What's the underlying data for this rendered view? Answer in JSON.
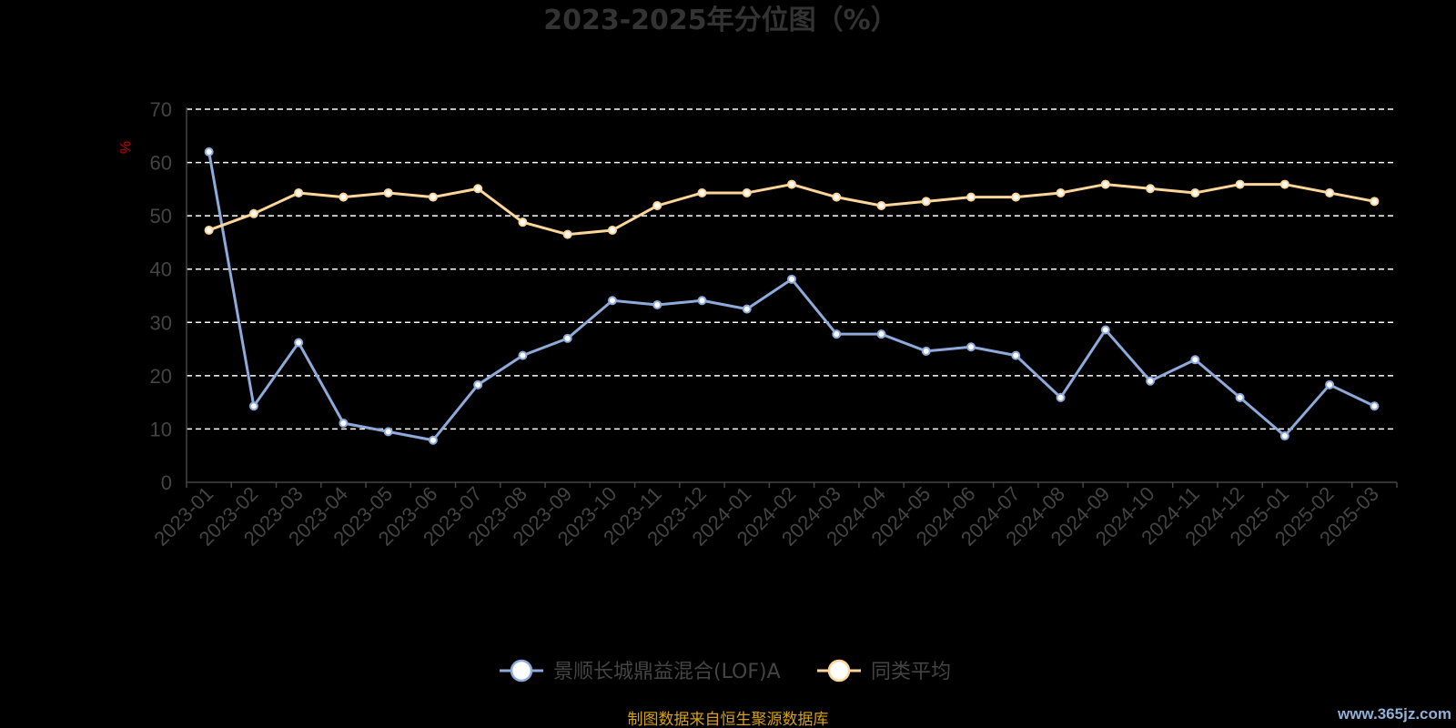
{
  "chart_data": {
    "type": "line",
    "title": "2023-2025年分位图（%）",
    "ylabel": "%",
    "ylim": [
      0,
      70
    ],
    "yticks": [
      0,
      10,
      20,
      30,
      40,
      50,
      60,
      70
    ],
    "grid": true,
    "legend_position": "bottom",
    "categories": [
      "2023-01",
      "2023-02",
      "2023-03",
      "2023-04",
      "2023-05",
      "2023-06",
      "2023-07",
      "2023-08",
      "2023-09",
      "2023-10",
      "2023-11",
      "2023-12",
      "2024-01",
      "2024-02",
      "2024-03",
      "2024-04",
      "2024-05",
      "2024-06",
      "2024-07",
      "2024-08",
      "2024-09",
      "2024-10",
      "2024-11",
      "2024-12",
      "2025-01",
      "2025-02",
      "2025-03"
    ],
    "series": [
      {
        "name": "景顺长城鼎益混合(LOF)A",
        "color": "#8eaadb",
        "values": [
          62,
          14.3,
          26.2,
          11.1,
          9.5,
          7.9,
          18.3,
          23.8,
          27.0,
          34.1,
          33.3,
          34.1,
          32.5,
          38.1,
          27.8,
          27.8,
          24.6,
          25.4,
          23.8,
          15.9,
          28.6,
          19.0,
          23.0,
          15.9,
          8.7,
          18.3,
          14.3
        ]
      },
      {
        "name": "同类平均",
        "color": "#ffd699",
        "values": [
          47.3,
          50.4,
          54.3,
          53.5,
          54.3,
          53.5,
          55.1,
          48.8,
          46.5,
          47.3,
          51.9,
          54.3,
          54.3,
          55.9,
          53.5,
          51.9,
          52.7,
          53.5,
          53.5,
          54.3,
          55.9,
          55.1,
          54.3,
          55.9,
          55.9,
          54.3,
          52.7
        ]
      }
    ]
  },
  "source_note": "制图数据来自恒生聚源数据库",
  "watermark": "www.365jz.com"
}
